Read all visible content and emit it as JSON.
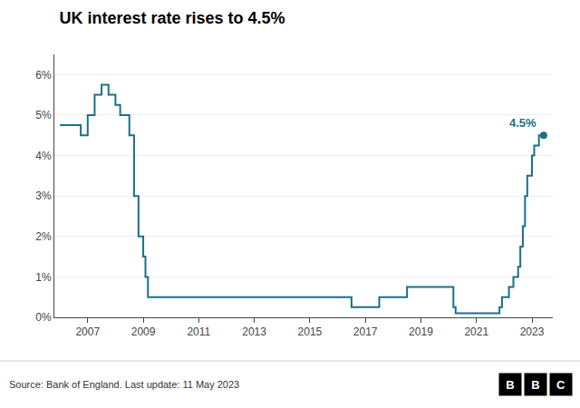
{
  "chart_data": {
    "type": "line",
    "title": "UK interest rate rises to 4.5%",
    "source": "Source: Bank of England. Last update: 11 May 2023",
    "logo": [
      "B",
      "B",
      "C"
    ],
    "series": [
      {
        "color": "#1b6f8a",
        "x": [
          2006.0,
          2006.75,
          2006.75,
          2007.0,
          2007.0,
          2007.25,
          2007.25,
          2007.5,
          2007.5,
          2007.75,
          2007.75,
          2008.0,
          2008.0,
          2008.17,
          2008.17,
          2008.5,
          2008.5,
          2008.67,
          2008.67,
          2008.83,
          2008.83,
          2009.0,
          2009.0,
          2009.08,
          2009.08,
          2009.17,
          2009.17,
          2016.5,
          2016.5,
          2017.5,
          2017.5,
          2018.5,
          2018.5,
          2020.17,
          2020.17,
          2020.25,
          2020.25,
          2021.83,
          2021.83,
          2021.92,
          2021.92,
          2022.17,
          2022.17,
          2022.33,
          2022.33,
          2022.5,
          2022.5,
          2022.58,
          2022.58,
          2022.67,
          2022.67,
          2022.75,
          2022.75,
          2022.83,
          2022.83,
          2022.92,
          2023.0,
          2023.0,
          2023.08,
          2023.08,
          2023.25,
          2023.25,
          2023.42
        ],
        "values": [
          4.75,
          4.75,
          4.5,
          4.5,
          5.0,
          5.0,
          5.5,
          5.5,
          5.75,
          5.75,
          5.5,
          5.5,
          5.25,
          5.25,
          5.0,
          5.0,
          4.5,
          4.5,
          3.0,
          3.0,
          2.0,
          2.0,
          1.5,
          1.5,
          1.0,
          1.0,
          0.5,
          0.5,
          0.25,
          0.25,
          0.5,
          0.5,
          0.75,
          0.75,
          0.25,
          0.25,
          0.1,
          0.1,
          0.25,
          0.25,
          0.5,
          0.5,
          0.75,
          0.75,
          1.0,
          1.0,
          1.25,
          1.25,
          1.75,
          1.75,
          2.25,
          2.25,
          3.0,
          3.0,
          3.5,
          3.5,
          3.5,
          4.0,
          4.0,
          4.25,
          4.25,
          4.5,
          4.5
        ]
      }
    ],
    "annotations": [
      {
        "text": "4.5%",
        "x": 2023.42,
        "y": 4.5,
        "color": "#1b6f8a"
      }
    ],
    "xlim": [
      2005.8,
      2023.75
    ],
    "xticks": [
      2007,
      2009,
      2011,
      2013,
      2015,
      2017,
      2019,
      2021,
      2023
    ],
    "ylim": [
      0,
      6.5
    ],
    "yticks": [
      {
        "value": 0,
        "label": "0%"
      },
      {
        "value": 1,
        "label": "1%"
      },
      {
        "value": 2,
        "label": "2%"
      },
      {
        "value": 3,
        "label": "3%"
      },
      {
        "value": 4,
        "label": "4%"
      },
      {
        "value": 5,
        "label": "5%"
      },
      {
        "value": 6,
        "label": "6%"
      }
    ],
    "grid": "y"
  }
}
